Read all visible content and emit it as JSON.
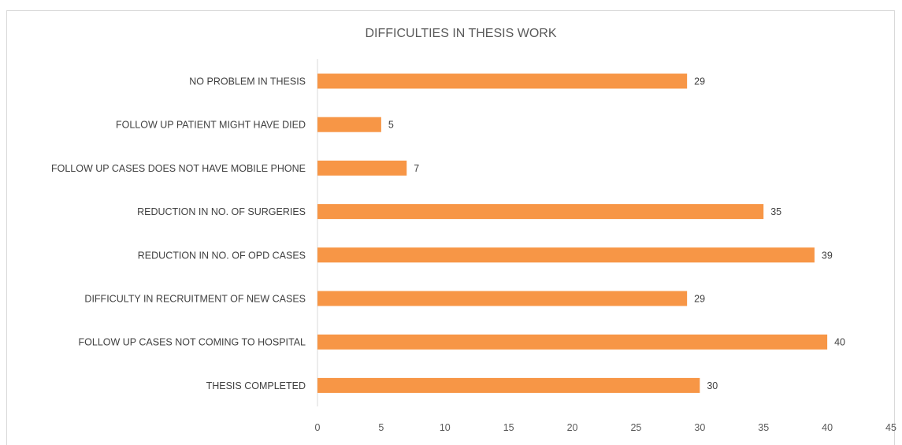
{
  "chart_data": {
    "type": "bar",
    "orientation": "horizontal",
    "title": "DIFFICULTIES IN THESIS WORK",
    "xlabel": "",
    "ylabel": "",
    "categories": [
      "NO PROBLEM IN THESIS",
      "FOLLOW UP PATIENT MIGHT HAVE DIED",
      "FOLLOW UP CASES DOES NOT HAVE MOBILE PHONE",
      "REDUCTION IN NO. OF SURGERIES",
      "REDUCTION IN NO. OF OPD CASES",
      "DIFFICULTY IN RECRUITMENT OF NEW CASES",
      "FOLLOW UP CASES NOT COMING TO HOSPITAL",
      "THESIS COMPLETED"
    ],
    "values": [
      29,
      5,
      7,
      35,
      39,
      29,
      40,
      30
    ],
    "xlim": [
      0,
      45
    ],
    "xticks": [
      0,
      5,
      10,
      15,
      20,
      25,
      30,
      35,
      40,
      45
    ],
    "bar_color": "#f79646",
    "axis_color": "#d9d9d9",
    "grid": false,
    "legend": "none",
    "data_labels": true
  }
}
